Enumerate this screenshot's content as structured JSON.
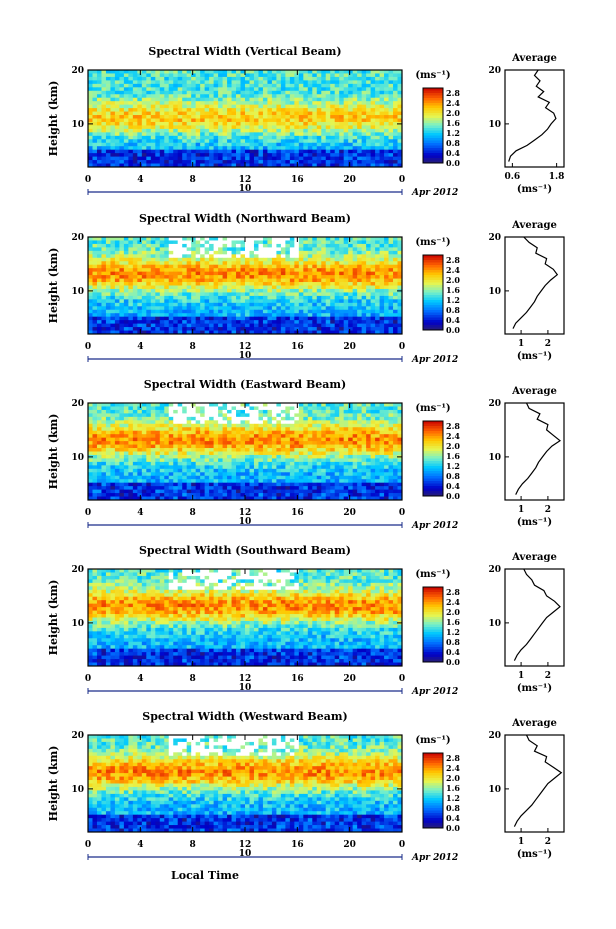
{
  "figure": {
    "xlabel": "Local Time",
    "date_marker": "10",
    "date_label": "Apr 2012"
  },
  "chart_data": [
    {
      "type": "heatmap",
      "title": "Spectral Width (Vertical Beam)",
      "xlabel": "Local Time",
      "ylabel": "Height (km)",
      "x_ticks": [
        "0",
        "4",
        "8",
        "12",
        "16",
        "20",
        "0"
      ],
      "y_ticks": [
        "20",
        "10"
      ],
      "xlim": [
        0,
        24
      ],
      "ylim": [
        2,
        20
      ],
      "colorbar": {
        "unit": "(ms⁻¹)",
        "ticks": [
          "2.8",
          "2.4",
          "2.0",
          "1.6",
          "1.2",
          "0.8",
          "0.4",
          "0.0"
        ],
        "range": [
          0.0,
          3.0
        ]
      },
      "z_description_profile_peak_height_km": 11,
      "band_strength": 0.55,
      "average_profile": {
        "title": "Average",
        "xlabel": "(ms⁻¹)",
        "x_ticks": [
          "0.6",
          "1.8"
        ],
        "xlim": [
          0.4,
          2.0
        ],
        "y_ticks": [
          "20",
          "10"
        ],
        "height_km": [
          3,
          4,
          5,
          6,
          7,
          8,
          9,
          10,
          11,
          12,
          13,
          14,
          15,
          16,
          17,
          18,
          19,
          20
        ],
        "values": [
          0.5,
          0.55,
          0.7,
          1.0,
          1.2,
          1.4,
          1.55,
          1.65,
          1.78,
          1.72,
          1.5,
          1.6,
          1.3,
          1.45,
          1.25,
          1.35,
          1.2,
          1.3
        ]
      }
    },
    {
      "type": "heatmap",
      "title": "Spectral Width (Northward Beam)",
      "xlabel": "Local Time",
      "ylabel": "Height (km)",
      "x_ticks": [
        "0",
        "4",
        "8",
        "12",
        "16",
        "20",
        "0"
      ],
      "y_ticks": [
        "20",
        "10"
      ],
      "xlim": [
        0,
        24
      ],
      "ylim": [
        2,
        20
      ],
      "colorbar": {
        "unit": "(ms⁻¹)",
        "ticks": [
          "2.8",
          "2.4",
          "2.0",
          "1.6",
          "1.2",
          "0.8",
          "0.4",
          "0.0"
        ],
        "range": [
          0.0,
          3.0
        ]
      },
      "z_description_profile_peak_height_km": 13,
      "band_strength": 0.9,
      "average_profile": {
        "title": "Average",
        "xlabel": "(ms⁻¹)",
        "x_ticks": [
          "1",
          "2"
        ],
        "xlim": [
          0.4,
          2.6
        ],
        "y_ticks": [
          "20",
          "10"
        ],
        "height_km": [
          3,
          4,
          5,
          6,
          7,
          8,
          9,
          10,
          11,
          12,
          13,
          14,
          15,
          16,
          17,
          18,
          19,
          20
        ],
        "values": [
          0.7,
          0.8,
          1.0,
          1.2,
          1.35,
          1.5,
          1.6,
          1.75,
          1.9,
          2.1,
          2.35,
          2.2,
          1.9,
          1.95,
          1.55,
          1.6,
          1.3,
          1.1
        ]
      }
    },
    {
      "type": "heatmap",
      "title": "Spectral Width (Eastward Beam)",
      "xlabel": "Local Time",
      "ylabel": "Height (km)",
      "x_ticks": [
        "0",
        "4",
        "8",
        "12",
        "16",
        "20",
        "0"
      ],
      "y_ticks": [
        "20",
        "10"
      ],
      "xlim": [
        0,
        24
      ],
      "ylim": [
        2,
        20
      ],
      "colorbar": {
        "unit": "(ms⁻¹)",
        "ticks": [
          "2.8",
          "2.4",
          "2.0",
          "1.6",
          "1.2",
          "0.8",
          "0.4",
          "0.0"
        ],
        "range": [
          0.0,
          3.0
        ]
      },
      "z_description_profile_peak_height_km": 13,
      "band_strength": 0.9,
      "average_profile": {
        "title": "Average",
        "xlabel": "(ms⁻¹)",
        "x_ticks": [
          "1",
          "2"
        ],
        "xlim": [
          0.4,
          2.6
        ],
        "y_ticks": [
          "20",
          "10"
        ],
        "height_km": [
          3,
          4,
          5,
          6,
          7,
          8,
          9,
          10,
          11,
          12,
          13,
          14,
          15,
          16,
          17,
          18,
          19,
          20
        ],
        "values": [
          0.8,
          0.9,
          1.05,
          1.25,
          1.4,
          1.55,
          1.65,
          1.8,
          1.95,
          2.15,
          2.45,
          2.2,
          1.95,
          2.0,
          1.6,
          1.7,
          1.3,
          1.2
        ]
      }
    },
    {
      "type": "heatmap",
      "title": "Spectral Width (Southward Beam)",
      "xlabel": "Local Time",
      "ylabel": "Height (km)",
      "x_ticks": [
        "0",
        "4",
        "8",
        "12",
        "16",
        "20",
        "0"
      ],
      "y_ticks": [
        "20",
        "10"
      ],
      "xlim": [
        0,
        24
      ],
      "ylim": [
        2,
        20
      ],
      "colorbar": {
        "unit": "(ms⁻¹)",
        "ticks": [
          "2.8",
          "2.4",
          "2.0",
          "1.6",
          "1.2",
          "0.8",
          "0.4",
          "0.0"
        ],
        "range": [
          0.0,
          3.0
        ]
      },
      "z_description_profile_peak_height_km": 13,
      "band_strength": 0.9,
      "average_profile": {
        "title": "Average",
        "xlabel": "(ms⁻¹)",
        "x_ticks": [
          "1",
          "2"
        ],
        "xlim": [
          0.4,
          2.6
        ],
        "y_ticks": [
          "20",
          "10"
        ],
        "height_km": [
          3,
          4,
          5,
          6,
          7,
          8,
          9,
          10,
          11,
          12,
          13,
          14,
          15,
          16,
          17,
          18,
          19,
          20
        ],
        "values": [
          0.75,
          0.85,
          1.0,
          1.2,
          1.35,
          1.5,
          1.65,
          1.8,
          1.95,
          2.2,
          2.45,
          2.25,
          1.95,
          1.85,
          1.5,
          1.4,
          1.2,
          1.1
        ]
      }
    },
    {
      "type": "heatmap",
      "title": "Spectral Width (Westward Beam)",
      "xlabel": "Local Time",
      "ylabel": "Height (km)",
      "x_ticks": [
        "0",
        "4",
        "8",
        "12",
        "16",
        "20",
        "0"
      ],
      "y_ticks": [
        "20",
        "10"
      ],
      "xlim": [
        0,
        24
      ],
      "ylim": [
        2,
        20
      ],
      "colorbar": {
        "unit": "(ms⁻¹)",
        "ticks": [
          "2.8",
          "2.4",
          "2.0",
          "1.6",
          "1.2",
          "0.8",
          "0.4",
          "0.0"
        ],
        "range": [
          0.0,
          3.0
        ]
      },
      "z_description_profile_peak_height_km": 13,
      "band_strength": 0.9,
      "average_profile": {
        "title": "Average",
        "xlabel": "(ms⁻¹)",
        "x_ticks": [
          "1",
          "2"
        ],
        "xlim": [
          0.4,
          2.6
        ],
        "y_ticks": [
          "20",
          "10"
        ],
        "height_km": [
          3,
          4,
          5,
          6,
          7,
          8,
          9,
          10,
          11,
          12,
          13,
          14,
          15,
          16,
          17,
          18,
          19,
          20
        ],
        "values": [
          0.75,
          0.85,
          1.0,
          1.2,
          1.4,
          1.55,
          1.7,
          1.85,
          2.0,
          2.25,
          2.5,
          2.2,
          1.9,
          1.95,
          1.5,
          1.6,
          1.3,
          1.2
        ]
      }
    }
  ]
}
